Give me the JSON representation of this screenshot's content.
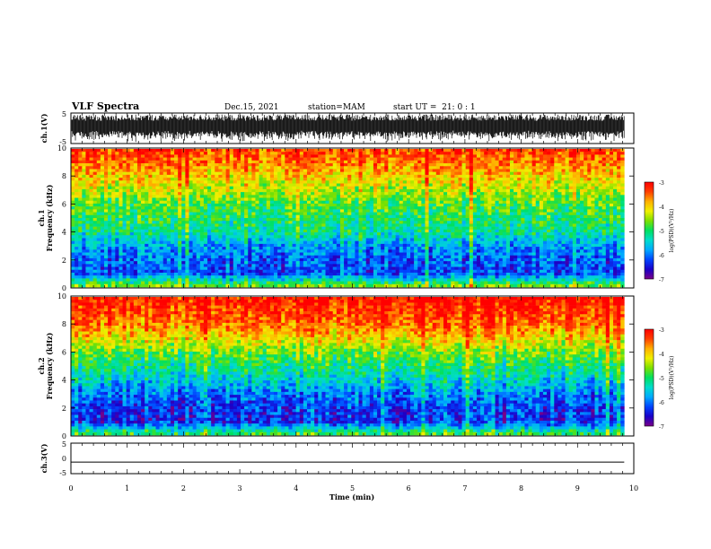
{
  "header": {
    "title": "VLF Spectra",
    "date": "Dec.15, 2021",
    "station": "station=MAM",
    "start": "start UT =  21: 0 : 1"
  },
  "colors": {
    "colormap": [
      "#7a0087",
      "#1a00c8",
      "#0044ff",
      "#00aaff",
      "#00ddcc",
      "#00e060",
      "#7ce000",
      "#f0f000",
      "#ffb000",
      "#ff4000",
      "#ff0000"
    ]
  },
  "chart_data": [
    {
      "type": "line",
      "panel": "ch1-waveform",
      "ylabel": "ch.1(V)",
      "ylim": [
        -5,
        5
      ],
      "yticks": [
        "5",
        "-5"
      ],
      "description_values": {
        "amplitude_range_v": [
          -4.5,
          4.5
        ]
      }
    },
    {
      "type": "heatmap",
      "panel": "ch1-spectrogram",
      "ylabel_line1": "ch.1",
      "ylabel_line2": "Frequency (kHz)",
      "ylim": [
        0,
        10
      ],
      "yticks": [
        "0",
        "2",
        "4",
        "6",
        "8",
        "10"
      ],
      "log_psd_by_frequency": {
        "freq_khz": [
          0,
          1,
          2,
          3,
          4,
          5,
          6,
          7,
          8,
          9,
          10
        ],
        "log_psd": [
          -4.5,
          -6.2,
          -6.1,
          -5.8,
          -5.2,
          -5.0,
          -4.8,
          -4.4,
          -4.0,
          -3.6,
          -3.3
        ]
      },
      "colorbar": {
        "label": "log(PSD)(V²/Hz)",
        "ticks": [
          "-3",
          "-4",
          "-5",
          "-6",
          "-7"
        ],
        "range": [
          -7,
          -3
        ]
      }
    },
    {
      "type": "heatmap",
      "panel": "ch2-spectrogram",
      "ylabel_line1": "ch.2",
      "ylabel_line2": "Frequency (kHz)",
      "ylim": [
        0,
        10
      ],
      "yticks": [
        "0",
        "2",
        "4",
        "6",
        "8",
        "10"
      ],
      "log_psd_by_frequency": {
        "freq_khz": [
          0,
          1,
          2,
          3,
          4,
          5,
          6,
          7,
          8,
          9,
          10
        ],
        "log_psd": [
          -4.8,
          -6.4,
          -6.3,
          -6.0,
          -5.5,
          -5.1,
          -4.7,
          -4.1,
          -3.6,
          -3.3,
          -3.1
        ]
      },
      "colorbar": {
        "label": "log(PSD)(V²/Hz)",
        "ticks": [
          "-3",
          "-4",
          "-5",
          "-6",
          "-7"
        ],
        "range": [
          -7,
          -3
        ]
      }
    },
    {
      "type": "line",
      "panel": "ch3-waveform",
      "ylabel": "ch.3(V)",
      "ylim": [
        -5,
        5
      ],
      "yticks": [
        "5",
        "0",
        "-5"
      ],
      "values": {
        "constant_v": -1.2
      }
    }
  ],
  "xaxis": {
    "label": "Time (min)",
    "xlim": [
      0,
      10
    ],
    "ticks": [
      "0",
      "1",
      "2",
      "3",
      "4",
      "5",
      "6",
      "7",
      "8",
      "9",
      "10"
    ],
    "data_end_min": 9.83
  }
}
